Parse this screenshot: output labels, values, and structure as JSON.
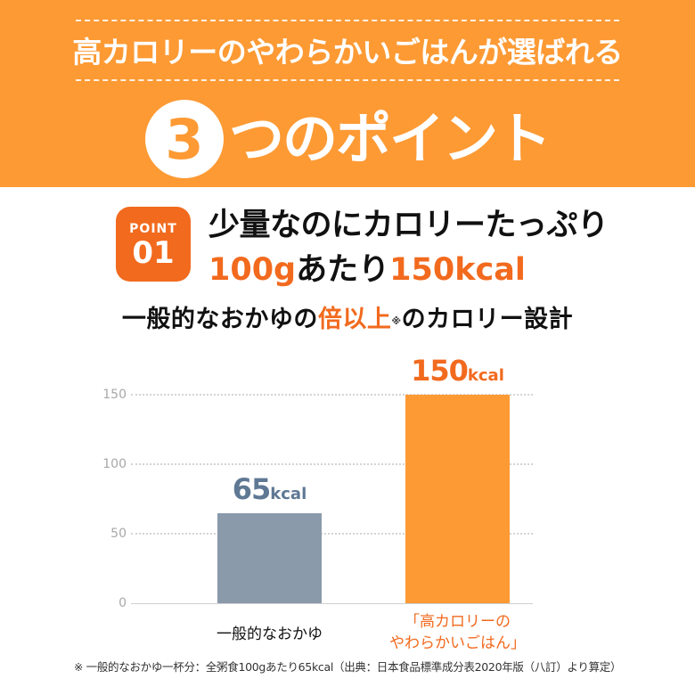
{
  "header": {
    "title": "高カロリーのやわらかいごはんが選ばれる",
    "points_number": "3",
    "points_text": "つのポイント"
  },
  "point": {
    "badge_label": "POINT",
    "badge_number": "01",
    "headline_line1": "少量なのにカロリーたっぷり",
    "headline_line2_a": "100g",
    "headline_line2_b": "あたり",
    "headline_line2_c": "150kcal"
  },
  "subhead": {
    "before": "一般的なおかゆの",
    "emphasis": "倍以上",
    "mark": "※",
    "after": "のカロリー設計"
  },
  "colors": {
    "header_bg": "#fd9a34",
    "accent": "#f26a1e",
    "bar_normal": "#8a9aab",
    "bar_highlight": "#fd9a34",
    "label_normal": "#5f7894"
  },
  "chart_data": {
    "type": "bar",
    "title": "",
    "xlabel": "",
    "ylabel": "kcal",
    "ylim": [
      0,
      150
    ],
    "yticks": [
      0,
      50,
      100,
      150
    ],
    "grid": true,
    "categories": [
      "一般的なおかゆ",
      "「高カロリーのやわらかいごはん」"
    ],
    "values": [
      65,
      150
    ],
    "data_labels": [
      {
        "value": "65",
        "unit": "kcal"
      },
      {
        "value": "150",
        "unit": "kcal"
      }
    ],
    "category_lines": [
      [
        "一般的なおかゆ"
      ],
      [
        "「高カロリーの",
        "やわらかいごはん」"
      ]
    ]
  },
  "footnote": "※ 一般的なおかゆ一杯分：全粥食100gあたり65kcal（出典：日本食品標準成分表2020年版（八訂）より算定）"
}
